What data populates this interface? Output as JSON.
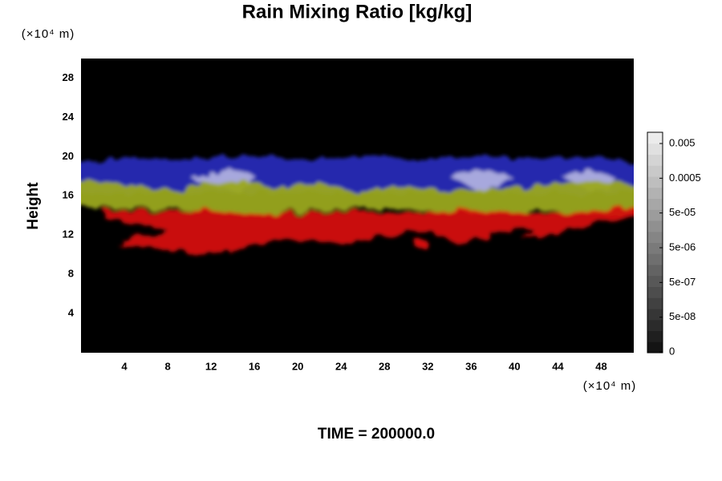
{
  "chart_data": {
    "type": "field",
    "title": "Rain Mixing Ratio [kg/kg]",
    "ylabel": "Height",
    "y_unit": "(×10⁴ m)",
    "x_unit": "(×10⁴ m)",
    "xlim": [
      0,
      51
    ],
    "xticks": [
      4,
      8,
      12,
      16,
      20,
      24,
      28,
      32,
      36,
      40,
      44,
      48
    ],
    "ylim": [
      0,
      30
    ],
    "yticks": [
      4,
      8,
      12,
      16,
      20,
      24,
      28
    ],
    "colorbar_ticks": [
      0.005,
      0.0005,
      {
        "value": 5e-05,
        "label": "5e-05"
      },
      {
        "value": 5e-06,
        "label": "5e-06"
      },
      {
        "value": 5e-07,
        "label": "5e-07"
      },
      {
        "value": 5e-08,
        "label": "5e-08"
      },
      0
    ],
    "footer": "TIME = 200000.0"
  }
}
